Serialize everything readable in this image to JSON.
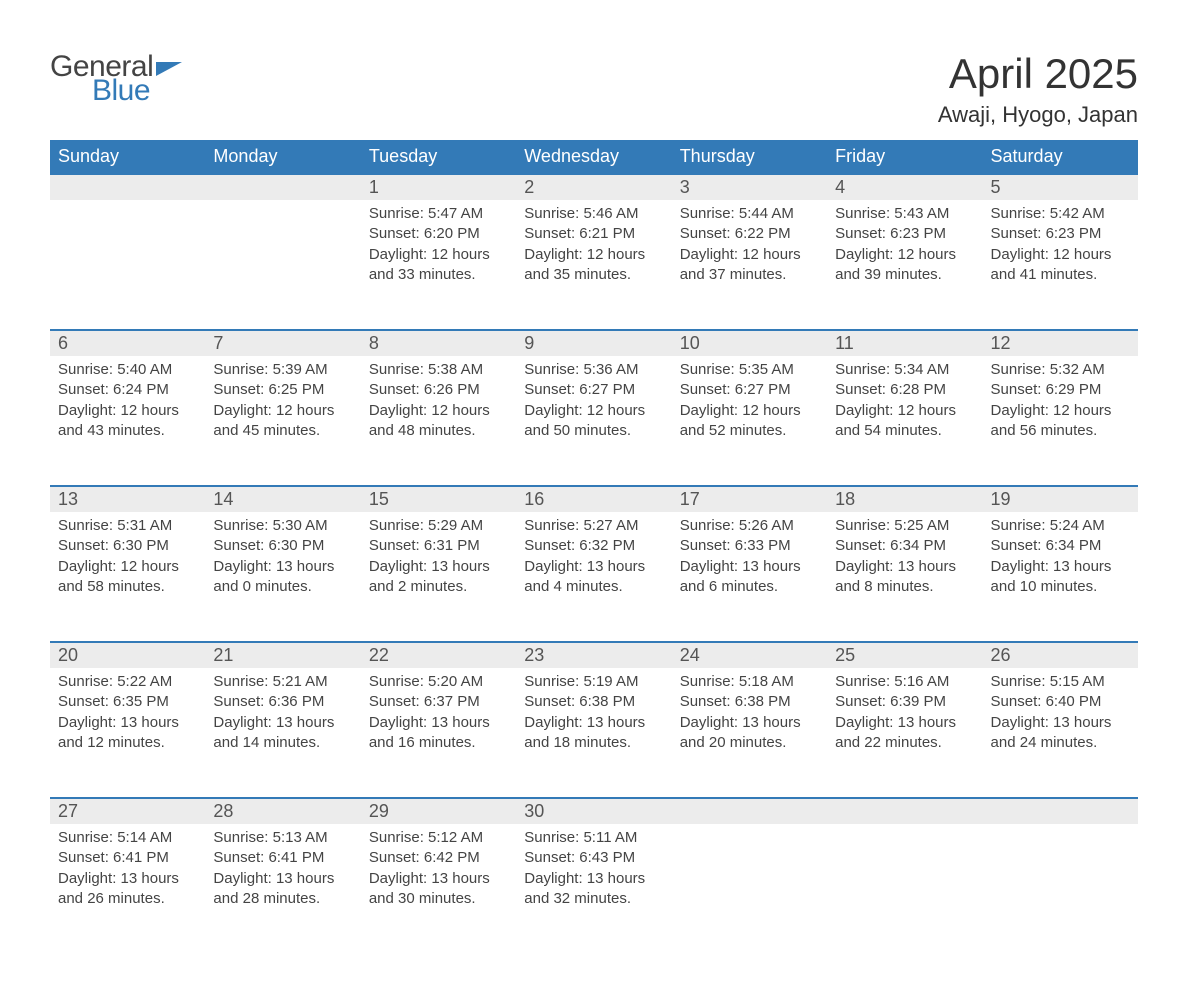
{
  "logo": {
    "text1": "General",
    "text2": "Blue"
  },
  "title": "April 2025",
  "location": "Awaji, Hyogo, Japan",
  "colors": {
    "header_bg": "#337ab7",
    "header_fg": "#ffffff",
    "daynum_bg": "#ececec",
    "daynum_border": "#337ab7",
    "text": "#444444",
    "page_bg": "#ffffff"
  },
  "weekday_labels": [
    "Sunday",
    "Monday",
    "Tuesday",
    "Wednesday",
    "Thursday",
    "Friday",
    "Saturday"
  ],
  "weeks": [
    [
      {
        "blank": true
      },
      {
        "blank": true
      },
      {
        "day": "1",
        "sunrise": "Sunrise: 5:47 AM",
        "sunset": "Sunset: 6:20 PM",
        "daylight1": "Daylight: 12 hours",
        "daylight2": "and 33 minutes."
      },
      {
        "day": "2",
        "sunrise": "Sunrise: 5:46 AM",
        "sunset": "Sunset: 6:21 PM",
        "daylight1": "Daylight: 12 hours",
        "daylight2": "and 35 minutes."
      },
      {
        "day": "3",
        "sunrise": "Sunrise: 5:44 AM",
        "sunset": "Sunset: 6:22 PM",
        "daylight1": "Daylight: 12 hours",
        "daylight2": "and 37 minutes."
      },
      {
        "day": "4",
        "sunrise": "Sunrise: 5:43 AM",
        "sunset": "Sunset: 6:23 PM",
        "daylight1": "Daylight: 12 hours",
        "daylight2": "and 39 minutes."
      },
      {
        "day": "5",
        "sunrise": "Sunrise: 5:42 AM",
        "sunset": "Sunset: 6:23 PM",
        "daylight1": "Daylight: 12 hours",
        "daylight2": "and 41 minutes."
      }
    ],
    [
      {
        "day": "6",
        "sunrise": "Sunrise: 5:40 AM",
        "sunset": "Sunset: 6:24 PM",
        "daylight1": "Daylight: 12 hours",
        "daylight2": "and 43 minutes."
      },
      {
        "day": "7",
        "sunrise": "Sunrise: 5:39 AM",
        "sunset": "Sunset: 6:25 PM",
        "daylight1": "Daylight: 12 hours",
        "daylight2": "and 45 minutes."
      },
      {
        "day": "8",
        "sunrise": "Sunrise: 5:38 AM",
        "sunset": "Sunset: 6:26 PM",
        "daylight1": "Daylight: 12 hours",
        "daylight2": "and 48 minutes."
      },
      {
        "day": "9",
        "sunrise": "Sunrise: 5:36 AM",
        "sunset": "Sunset: 6:27 PM",
        "daylight1": "Daylight: 12 hours",
        "daylight2": "and 50 minutes."
      },
      {
        "day": "10",
        "sunrise": "Sunrise: 5:35 AM",
        "sunset": "Sunset: 6:27 PM",
        "daylight1": "Daylight: 12 hours",
        "daylight2": "and 52 minutes."
      },
      {
        "day": "11",
        "sunrise": "Sunrise: 5:34 AM",
        "sunset": "Sunset: 6:28 PM",
        "daylight1": "Daylight: 12 hours",
        "daylight2": "and 54 minutes."
      },
      {
        "day": "12",
        "sunrise": "Sunrise: 5:32 AM",
        "sunset": "Sunset: 6:29 PM",
        "daylight1": "Daylight: 12 hours",
        "daylight2": "and 56 minutes."
      }
    ],
    [
      {
        "day": "13",
        "sunrise": "Sunrise: 5:31 AM",
        "sunset": "Sunset: 6:30 PM",
        "daylight1": "Daylight: 12 hours",
        "daylight2": "and 58 minutes."
      },
      {
        "day": "14",
        "sunrise": "Sunrise: 5:30 AM",
        "sunset": "Sunset: 6:30 PM",
        "daylight1": "Daylight: 13 hours",
        "daylight2": "and 0 minutes."
      },
      {
        "day": "15",
        "sunrise": "Sunrise: 5:29 AM",
        "sunset": "Sunset: 6:31 PM",
        "daylight1": "Daylight: 13 hours",
        "daylight2": "and 2 minutes."
      },
      {
        "day": "16",
        "sunrise": "Sunrise: 5:27 AM",
        "sunset": "Sunset: 6:32 PM",
        "daylight1": "Daylight: 13 hours",
        "daylight2": "and 4 minutes."
      },
      {
        "day": "17",
        "sunrise": "Sunrise: 5:26 AM",
        "sunset": "Sunset: 6:33 PM",
        "daylight1": "Daylight: 13 hours",
        "daylight2": "and 6 minutes."
      },
      {
        "day": "18",
        "sunrise": "Sunrise: 5:25 AM",
        "sunset": "Sunset: 6:34 PM",
        "daylight1": "Daylight: 13 hours",
        "daylight2": "and 8 minutes."
      },
      {
        "day": "19",
        "sunrise": "Sunrise: 5:24 AM",
        "sunset": "Sunset: 6:34 PM",
        "daylight1": "Daylight: 13 hours",
        "daylight2": "and 10 minutes."
      }
    ],
    [
      {
        "day": "20",
        "sunrise": "Sunrise: 5:22 AM",
        "sunset": "Sunset: 6:35 PM",
        "daylight1": "Daylight: 13 hours",
        "daylight2": "and 12 minutes."
      },
      {
        "day": "21",
        "sunrise": "Sunrise: 5:21 AM",
        "sunset": "Sunset: 6:36 PM",
        "daylight1": "Daylight: 13 hours",
        "daylight2": "and 14 minutes."
      },
      {
        "day": "22",
        "sunrise": "Sunrise: 5:20 AM",
        "sunset": "Sunset: 6:37 PM",
        "daylight1": "Daylight: 13 hours",
        "daylight2": "and 16 minutes."
      },
      {
        "day": "23",
        "sunrise": "Sunrise: 5:19 AM",
        "sunset": "Sunset: 6:38 PM",
        "daylight1": "Daylight: 13 hours",
        "daylight2": "and 18 minutes."
      },
      {
        "day": "24",
        "sunrise": "Sunrise: 5:18 AM",
        "sunset": "Sunset: 6:38 PM",
        "daylight1": "Daylight: 13 hours",
        "daylight2": "and 20 minutes."
      },
      {
        "day": "25",
        "sunrise": "Sunrise: 5:16 AM",
        "sunset": "Sunset: 6:39 PM",
        "daylight1": "Daylight: 13 hours",
        "daylight2": "and 22 minutes."
      },
      {
        "day": "26",
        "sunrise": "Sunrise: 5:15 AM",
        "sunset": "Sunset: 6:40 PM",
        "daylight1": "Daylight: 13 hours",
        "daylight2": "and 24 minutes."
      }
    ],
    [
      {
        "day": "27",
        "sunrise": "Sunrise: 5:14 AM",
        "sunset": "Sunset: 6:41 PM",
        "daylight1": "Daylight: 13 hours",
        "daylight2": "and 26 minutes."
      },
      {
        "day": "28",
        "sunrise": "Sunrise: 5:13 AM",
        "sunset": "Sunset: 6:41 PM",
        "daylight1": "Daylight: 13 hours",
        "daylight2": "and 28 minutes."
      },
      {
        "day": "29",
        "sunrise": "Sunrise: 5:12 AM",
        "sunset": "Sunset: 6:42 PM",
        "daylight1": "Daylight: 13 hours",
        "daylight2": "and 30 minutes."
      },
      {
        "day": "30",
        "sunrise": "Sunrise: 5:11 AM",
        "sunset": "Sunset: 6:43 PM",
        "daylight1": "Daylight: 13 hours",
        "daylight2": "and 32 minutes."
      },
      {
        "blank": true
      },
      {
        "blank": true
      },
      {
        "blank": true
      }
    ]
  ]
}
